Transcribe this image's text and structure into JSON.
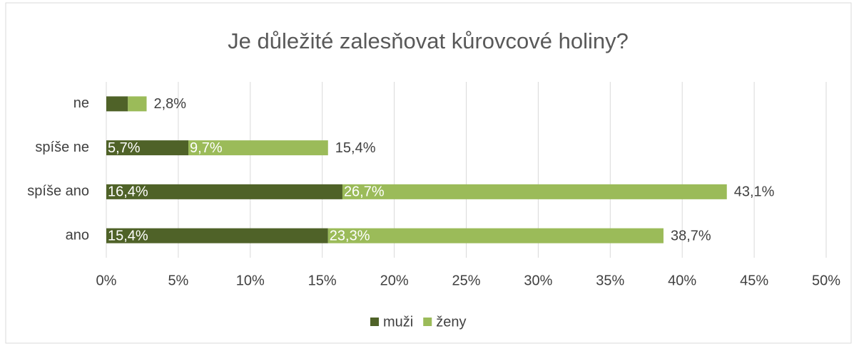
{
  "chart_data": {
    "type": "stacked-barh",
    "title": "Je důležité zalesňovat kůrovcové holiny?",
    "categories": [
      "ne",
      "spíše ne",
      "spíše ano",
      "ano"
    ],
    "series": [
      {
        "name": "muži",
        "color": "#4f6228",
        "values": [
          1.5,
          5.7,
          16.4,
          15.4
        ],
        "value_labels": [
          null,
          "5,7%",
          "16,4%",
          "15,4%"
        ]
      },
      {
        "name": "ženy",
        "color": "#9bbb59",
        "values": [
          1.3,
          9.7,
          26.7,
          23.3
        ],
        "value_labels": [
          null,
          "9,7%",
          "26,7%",
          "23,3%"
        ]
      }
    ],
    "totals": [
      2.8,
      15.4,
      43.1,
      38.7
    ],
    "total_labels": [
      "2,8%",
      "15,4%",
      "43,1%",
      "38,7%"
    ],
    "xlim": [
      0,
      50
    ],
    "xticks": [
      {
        "value": 0,
        "label": "0%"
      },
      {
        "value": 5,
        "label": "5%"
      },
      {
        "value": 10,
        "label": "10%"
      },
      {
        "value": 15,
        "label": "15%"
      },
      {
        "value": 20,
        "label": "20%"
      },
      {
        "value": 25,
        "label": "25%"
      },
      {
        "value": 30,
        "label": "30%"
      },
      {
        "value": 35,
        "label": "35%"
      },
      {
        "value": 40,
        "label": "40%"
      },
      {
        "value": 45,
        "label": "45%"
      },
      {
        "value": 50,
        "label": "50%"
      }
    ],
    "grid": true,
    "legend": "bottom"
  }
}
